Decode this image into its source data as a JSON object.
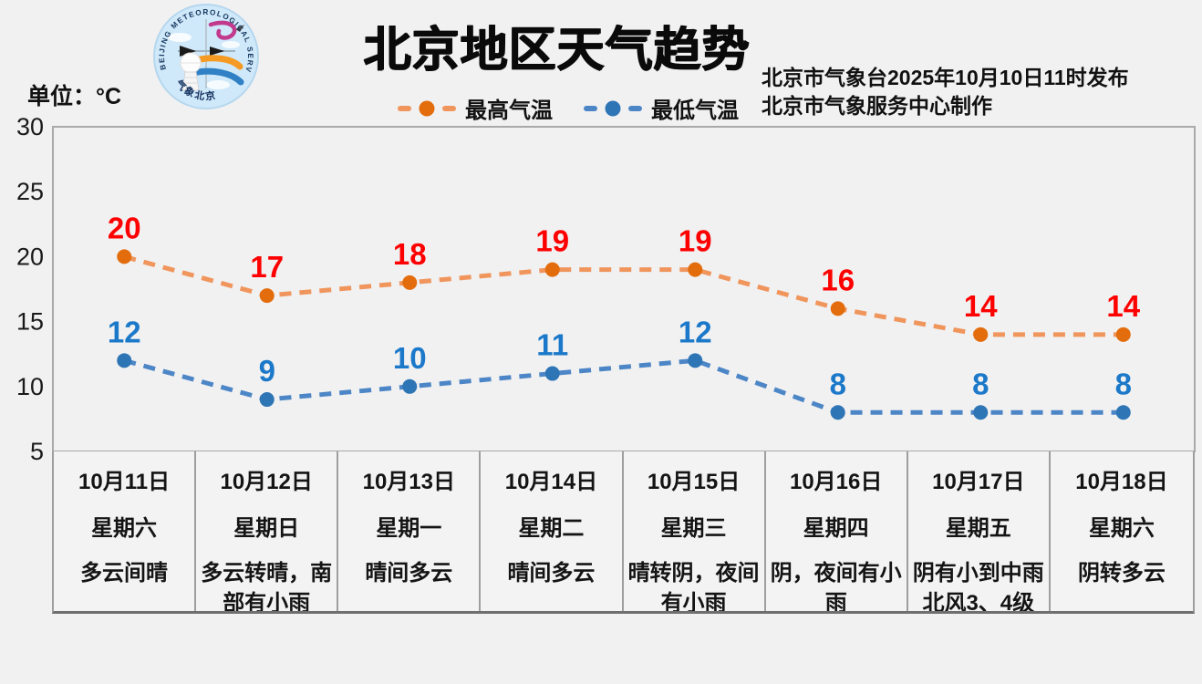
{
  "header": {
    "title": "北京地区天气趋势",
    "unit_label": "单位：°C",
    "issue_line1": "北京市气象台2025年10月10日11时发布",
    "issue_line2": "北京市气象服务中心制作",
    "logo": {
      "ring_text": "BEIJING METEOROLOGICAL SERVICE",
      "bottom_text": "气象北京"
    }
  },
  "legend": [
    {
      "label": "最高气温",
      "line_color": "#f0955c",
      "marker_color": "#e36d0c"
    },
    {
      "label": "最低气温",
      "line_color": "#4d86c6",
      "marker_color": "#2e75b6"
    }
  ],
  "chart_data": {
    "type": "line",
    "line_style": "dashed",
    "grid": false,
    "legend_position": "top",
    "ylabel": "单位：°C",
    "ylim": [
      5,
      30
    ],
    "yticks": [
      30,
      25,
      20,
      15,
      10,
      5
    ],
    "categories": [
      "10月11日",
      "10月12日",
      "10月13日",
      "10月14日",
      "10月15日",
      "10月16日",
      "10月17日",
      "10月18日"
    ],
    "series": [
      {
        "name": "最高气温",
        "values": [
          20,
          17,
          18,
          19,
          19,
          16,
          14,
          14
        ],
        "line_color": "#f0955c",
        "marker_color": "#e36d0c",
        "label_color": "#fe0000"
      },
      {
        "name": "最低气温",
        "values": [
          12,
          9,
          10,
          11,
          12,
          8,
          8,
          8
        ],
        "line_color": "#4d86c6",
        "marker_color": "#2e75b6",
        "label_color": "#1c79c9"
      }
    ]
  },
  "days": [
    {
      "date": "10月11日",
      "weekday": "星期六",
      "weather": "多云间晴",
      "wind": ""
    },
    {
      "date": "10月12日",
      "weekday": "星期日",
      "weather": "多云转晴，南部有小雨",
      "wind": ""
    },
    {
      "date": "10月13日",
      "weekday": "星期一",
      "weather": "晴间多云",
      "wind": ""
    },
    {
      "date": "10月14日",
      "weekday": "星期二",
      "weather": "晴间多云",
      "wind": ""
    },
    {
      "date": "10月15日",
      "weekday": "星期三",
      "weather": "晴转阴，夜间有小雨",
      "wind": ""
    },
    {
      "date": "10月16日",
      "weekday": "星期四",
      "weather": "阴，夜间有小雨",
      "wind": ""
    },
    {
      "date": "10月17日",
      "weekday": "星期五",
      "weather": "阴有小到中雨",
      "wind": "北风3、4级"
    },
    {
      "date": "10月18日",
      "weekday": "星期六",
      "weather": "阴转多云",
      "wind": ""
    }
  ],
  "colors": {
    "page_bg": "#f1f1f2",
    "plot_border": "#a9a9a9",
    "table_border": "#9e9e9e",
    "axis_text": "#1a1a1a",
    "high_label": "#fe0000",
    "low_label": "#1c79c9"
  }
}
